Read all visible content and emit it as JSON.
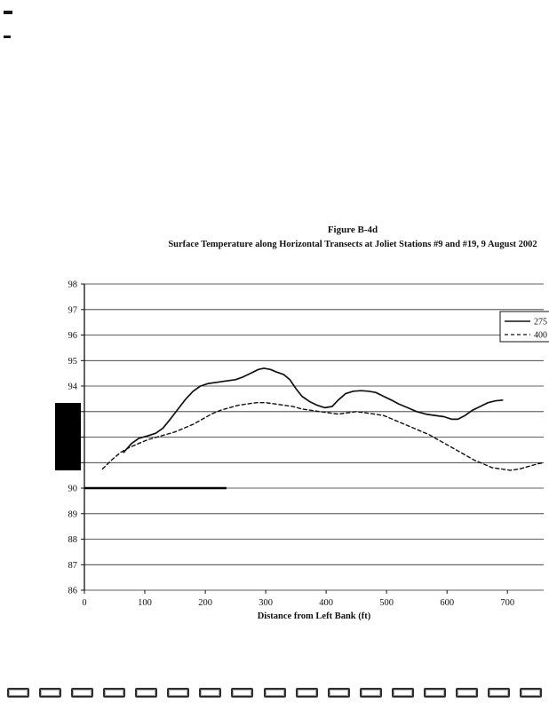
{
  "figure": {
    "label": "Figure B-4d",
    "title": "Surface Temperature along Horizontal Transects at Joliet Stations #9 and #19, 9 August 2002"
  },
  "chart_data": {
    "type": "line",
    "title": "Figure B-4d",
    "subtitle": "Surface Temperature along Horizontal Transects at Joliet Stations #9 and #19, 9 August 2002",
    "xlabel": "Distance from Left Bank (ft)",
    "ylabel": "",
    "xlim": [
      0,
      760
    ],
    "ylim": [
      86,
      98
    ],
    "x_ticks": [
      0,
      100,
      200,
      300,
      400,
      500,
      600,
      700
    ],
    "y_ticks": [
      86,
      87,
      88,
      89,
      90,
      91,
      92,
      93,
      94,
      95,
      96,
      97,
      98
    ],
    "grid": "horizontal",
    "legend_position": "top-right",
    "series": [
      {
        "name": "275",
        "style": "solid",
        "color": "#111111",
        "points": [
          [
            65,
            91.4
          ],
          [
            78,
            91.75
          ],
          [
            90,
            91.95
          ],
          [
            105,
            92.05
          ],
          [
            118,
            92.15
          ],
          [
            130,
            92.35
          ],
          [
            142,
            92.7
          ],
          [
            155,
            93.1
          ],
          [
            168,
            93.5
          ],
          [
            180,
            93.8
          ],
          [
            192,
            94.0
          ],
          [
            205,
            94.1
          ],
          [
            220,
            94.15
          ],
          [
            235,
            94.2
          ],
          [
            250,
            94.25
          ],
          [
            262,
            94.35
          ],
          [
            275,
            94.5
          ],
          [
            288,
            94.65
          ],
          [
            297,
            94.7
          ],
          [
            308,
            94.65
          ],
          [
            318,
            94.55
          ],
          [
            330,
            94.45
          ],
          [
            340,
            94.25
          ],
          [
            350,
            93.9
          ],
          [
            360,
            93.6
          ],
          [
            372,
            93.4
          ],
          [
            385,
            93.25
          ],
          [
            398,
            93.15
          ],
          [
            410,
            93.2
          ],
          [
            420,
            93.45
          ],
          [
            432,
            93.7
          ],
          [
            445,
            93.8
          ],
          [
            458,
            93.82
          ],
          [
            470,
            93.8
          ],
          [
            482,
            93.75
          ],
          [
            495,
            93.6
          ],
          [
            508,
            93.45
          ],
          [
            520,
            93.3
          ],
          [
            535,
            93.15
          ],
          [
            550,
            93.0
          ],
          [
            565,
            92.9
          ],
          [
            580,
            92.85
          ],
          [
            595,
            92.8
          ],
          [
            608,
            92.7
          ],
          [
            618,
            92.7
          ],
          [
            630,
            92.85
          ],
          [
            642,
            93.05
          ],
          [
            655,
            93.2
          ],
          [
            668,
            93.35
          ],
          [
            680,
            93.42
          ],
          [
            692,
            93.45
          ]
        ]
      },
      {
        "name": "400",
        "style": "dashed",
        "color": "#111111",
        "points": [
          [
            30,
            90.75
          ],
          [
            45,
            91.1
          ],
          [
            60,
            91.4
          ],
          [
            75,
            91.6
          ],
          [
            90,
            91.75
          ],
          [
            105,
            91.9
          ],
          [
            120,
            92.0
          ],
          [
            135,
            92.1
          ],
          [
            150,
            92.2
          ],
          [
            165,
            92.35
          ],
          [
            180,
            92.5
          ],
          [
            195,
            92.7
          ],
          [
            210,
            92.9
          ],
          [
            225,
            93.05
          ],
          [
            240,
            93.15
          ],
          [
            255,
            93.25
          ],
          [
            270,
            93.3
          ],
          [
            285,
            93.35
          ],
          [
            300,
            93.35
          ],
          [
            315,
            93.3
          ],
          [
            330,
            93.25
          ],
          [
            345,
            93.2
          ],
          [
            360,
            93.1
          ],
          [
            375,
            93.05
          ],
          [
            390,
            93.0
          ],
          [
            405,
            92.95
          ],
          [
            420,
            92.9
          ],
          [
            435,
            92.95
          ],
          [
            450,
            93.0
          ],
          [
            465,
            92.95
          ],
          [
            480,
            92.9
          ],
          [
            495,
            92.85
          ],
          [
            510,
            92.7
          ],
          [
            525,
            92.55
          ],
          [
            540,
            92.4
          ],
          [
            555,
            92.25
          ],
          [
            570,
            92.1
          ],
          [
            585,
            91.9
          ],
          [
            600,
            91.7
          ],
          [
            615,
            91.5
          ],
          [
            630,
            91.3
          ],
          [
            645,
            91.1
          ],
          [
            660,
            90.95
          ],
          [
            675,
            90.8
          ],
          [
            690,
            90.75
          ],
          [
            705,
            90.7
          ],
          [
            720,
            90.75
          ],
          [
            735,
            90.85
          ],
          [
            750,
            90.95
          ],
          [
            760,
            91.0
          ]
        ]
      }
    ],
    "scan_artifacts": {
      "dark_segment_on_90_line": {
        "y_value": 90,
        "x_from_ft": 0,
        "x_to_ft": 235
      }
    }
  },
  "scan_marks": {
    "bottom_count": 17
  }
}
